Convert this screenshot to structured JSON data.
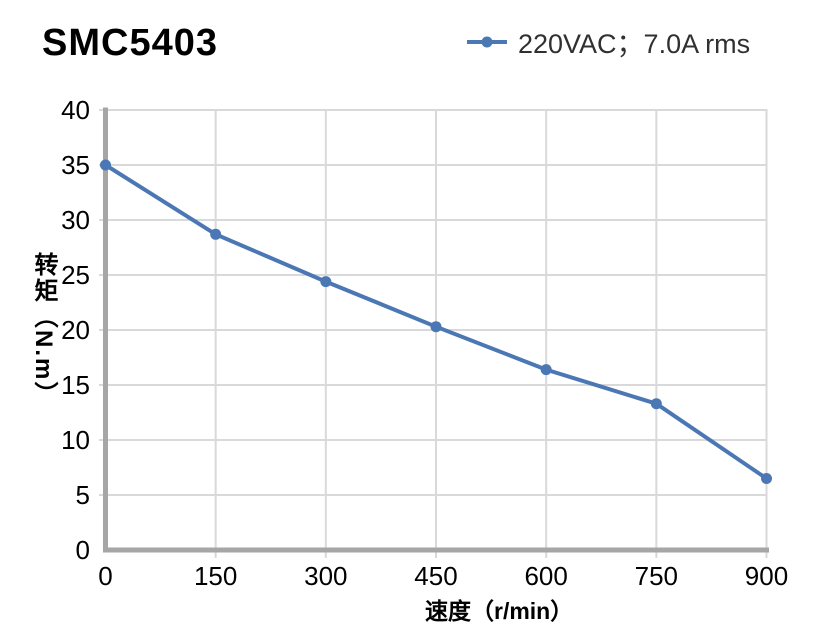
{
  "header": {
    "title": "SMC5403"
  },
  "legend": {
    "label": "220VAC；7.0A rms",
    "marker": "line-with-dot"
  },
  "chart_data": {
    "type": "line",
    "title": "SMC5403",
    "series": [
      {
        "name": "220VAC；7.0A rms",
        "x": [
          0,
          150,
          300,
          450,
          600,
          750,
          900
        ],
        "values": [
          35,
          28.7,
          24.4,
          20.3,
          16.4,
          13.3,
          6.5
        ]
      }
    ],
    "xlabel": "速度（r/min）",
    "ylabel": "转矩（N.m）",
    "xlim": [
      0,
      900
    ],
    "ylim": [
      0,
      40
    ],
    "x_ticks": [
      0,
      150,
      300,
      450,
      600,
      750,
      900
    ],
    "y_ticks": [
      0,
      5,
      10,
      15,
      20,
      25,
      30,
      35,
      40
    ],
    "grid": true,
    "legend_position": "top-right",
    "colors": {
      "line": "#4B78B4",
      "grid": "#D9D9D9",
      "axis": "#A6A6A6",
      "text": "#000000",
      "legend_text": "#303030"
    }
  }
}
